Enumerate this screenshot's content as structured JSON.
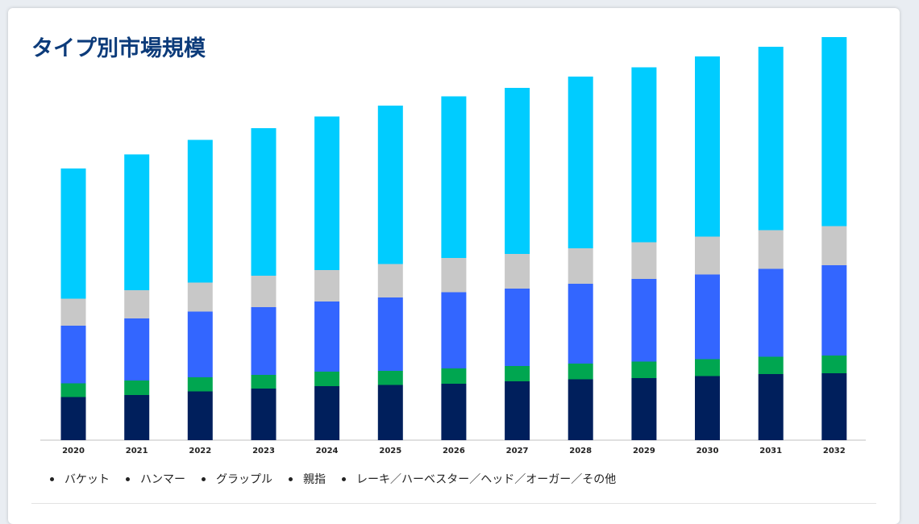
{
  "title": "タイプ別市場規模",
  "chart_data": {
    "type": "bar",
    "stacked": true,
    "categories": [
      "2020",
      "2021",
      "2022",
      "2023",
      "2024",
      "2025",
      "2026",
      "2027",
      "2028",
      "2029",
      "2030",
      "2031",
      "2032"
    ],
    "series": [
      {
        "name": "バケット",
        "color": "#001f5c",
        "values": [
          10.7,
          11.2,
          12.1,
          12.8,
          13.4,
          13.7,
          14.0,
          14.6,
          15.1,
          15.4,
          15.9,
          16.4,
          16.6
        ]
      },
      {
        "name": "ハンマー",
        "color": "#00a650",
        "values": [
          3.4,
          3.6,
          3.5,
          3.4,
          3.6,
          3.5,
          3.8,
          3.8,
          3.9,
          4.1,
          4.2,
          4.3,
          4.4
        ]
      },
      {
        "name": "グラップル",
        "color": "#3366ff",
        "values": [
          14.3,
          15.4,
          16.3,
          16.8,
          17.4,
          18.2,
          18.9,
          19.2,
          19.8,
          20.5,
          21.0,
          21.8,
          22.4
        ]
      },
      {
        "name": "親指",
        "color": "#c8c8c8",
        "values": [
          6.7,
          7.0,
          7.2,
          7.8,
          7.8,
          8.3,
          8.5,
          8.6,
          8.8,
          9.1,
          9.4,
          9.6,
          9.7
        ]
      },
      {
        "name": "レーキ／ハーベスター／ヘッド／オーガー／その他",
        "color": "#00ccff",
        "values": [
          32.3,
          33.7,
          35.4,
          36.6,
          38.1,
          39.3,
          40.1,
          41.2,
          42.6,
          43.4,
          44.7,
          45.5,
          46.9
        ]
      }
    ],
    "ylim": [
      0,
      100
    ],
    "grid": false,
    "legend_position": "bottom-left"
  }
}
